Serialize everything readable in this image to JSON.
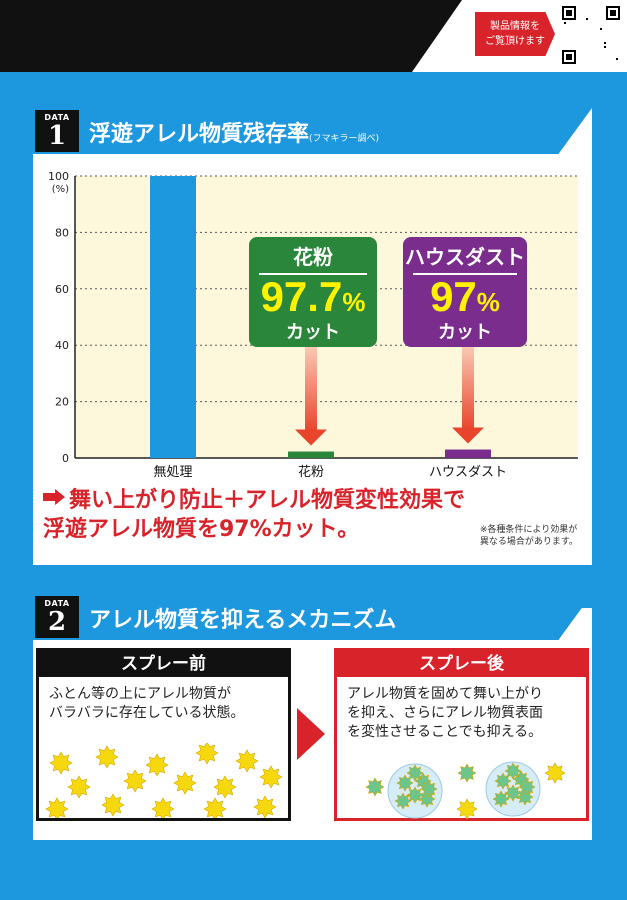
{
  "header": {
    "product_button_lines": [
      "製品情報を",
      "ご覧頂けます"
    ],
    "qr_icon": "qr-code-icon"
  },
  "section1": {
    "badge_word": "DATA",
    "badge_number": "1",
    "title": "浮遊アレル物質残存率",
    "title_note": "(フマキラー調べ)",
    "callout_pollen": {
      "label": "花粉",
      "value": "97.7",
      "percent": "%",
      "cut": "カット"
    },
    "callout_dust": {
      "label": "ハウスダスト",
      "value": "97",
      "percent": "%",
      "cut": "カット"
    },
    "message_line1": "舞い上がり防止＋アレル物質変性効果で",
    "message_line2": "浮遊アレル物質を97%カット。",
    "note_line1": "※各種条件により効果が",
    "note_line2": "異なる場合があります。"
  },
  "chart_data": {
    "type": "bar",
    "categories": [
      "無処理",
      "花粉",
      "ハウスダスト"
    ],
    "values": [
      100,
      2.3,
      3
    ],
    "ylabel": "(%)",
    "ylim": [
      0,
      100
    ],
    "yticks": [
      0,
      20,
      40,
      60,
      80,
      100
    ],
    "grid": true,
    "colors": {
      "control": "#1d97de",
      "pollen": "#29863b",
      "dust": "#7b2d8e",
      "plot_bg": "#fdf8dc",
      "arrow": "#e8452c"
    }
  },
  "section2": {
    "badge_word": "DATA",
    "badge_number": "2",
    "title": "アレル物質を抑えるメカニズム",
    "before_title": "スプレー前",
    "before_line1": "ふとん等の上にアレル物質が",
    "before_line2": "バラバラに存在している状態。",
    "after_title": "スプレー後",
    "after_line1": "アレル物質を固めて舞い上がり",
    "after_line2": "を抑え、さらにアレル物質表面",
    "after_line3": "を変性させることでも抑える。"
  }
}
